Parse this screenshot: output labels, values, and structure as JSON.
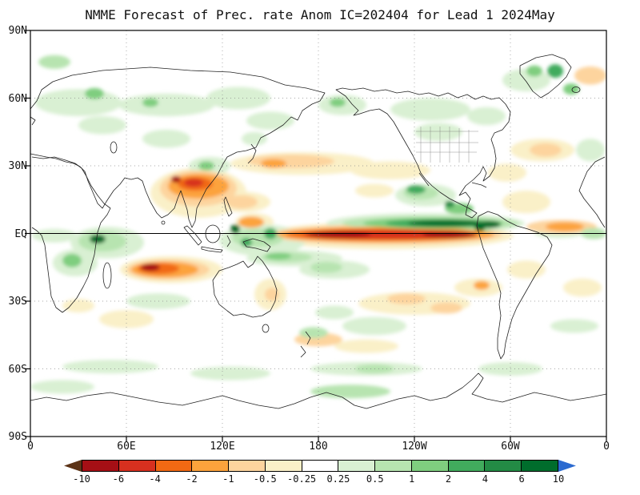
{
  "title": "NMME Forecast of Prec. rate Anom IC=202404 for Lead 1 2024May",
  "axes": {
    "y_ticks": [
      "90N",
      "60N",
      "30N",
      "EQ",
      "30S",
      "60S",
      "90S"
    ],
    "x_ticks": [
      "0",
      "60E",
      "120E",
      "180",
      "120W",
      "60W",
      "0"
    ]
  },
  "colorbar": {
    "labels": [
      "-10",
      "-6",
      "-4",
      "-2",
      "-1",
      "-0.5",
      "-0.25",
      "0.25",
      "0.5",
      "1",
      "2",
      "4",
      "6",
      "10"
    ],
    "colors": [
      "#5c3317",
      "#a50f15",
      "#d7301f",
      "#f16913",
      "#fca33c",
      "#fdd49e",
      "#faf0c8",
      "#ffffff",
      "#d9f0d3",
      "#b7e4b0",
      "#7fce7f",
      "#41ab5d",
      "#238b45",
      "#006d2c",
      "#2b6ad0"
    ]
  },
  "chart_data": {
    "type": "heatmap",
    "title": "NMME Forecast of Prec. rate Anom IC=202404 for Lead 1 2024May",
    "projection": "global lat-lon map, Pacific-centered, lon 0E-360E left to right",
    "x_ticks": [
      "0",
      "60E",
      "120E",
      "180",
      "120W",
      "60W",
      "0"
    ],
    "y_ticks": [
      "90N",
      "60N",
      "30N",
      "EQ",
      "30S",
      "60S",
      "90S"
    ],
    "colorbar_levels": [
      -10,
      -6,
      -4,
      -2,
      -1,
      -0.5,
      -0.25,
      0.25,
      0.5,
      1,
      2,
      4,
      6,
      10
    ],
    "legend_note": "negative (brown/red/orange/yellow) = dry anomaly, positive (green/blue) = wet anomaly",
    "major_anomalies": [
      "Strong dry anomaly (-2 to <-10) along the equator in the central/eastern Pacific, ~150E-65W",
      "Strong wet band (+1 to >+6, dark green core) just north of the equator ~165E-60W",
      "Dry anomaly cell over Southeast Asia / Bay of Bengal (~90-125E, 12-28N) with red core",
      "Dry band in the south Indian Ocean (~55-115E, 10-22S) with red core",
      "Wet anomaly over western equatorial Indian Ocean near East Africa",
      "Wet patches over the Maritime Continent and a wet band ~5-12S in the west Pacific",
      "Weak dry streak across subtropical North Pacific (~25-35N, 140E-160W)",
      "Dry band in tropical Atlantic just north of equator; wet strip on the equator near 0E/W",
      "Wet anomalies along Mexico / Central America Pacific coast and Colombia",
      "Scattered weak wet anomalies across northern high latitudes and the Southern Ocean"
    ],
    "features": [
      {
        "lon": 105,
        "lat": 18,
        "dlon": 30,
        "dlat": 11,
        "v": -0.35
      },
      {
        "lon": 222,
        "lat": -1,
        "dlon": 80,
        "dlat": 6,
        "v": -0.35
      },
      {
        "lon": 88,
        "lat": -16,
        "dlon": 32,
        "dlat": 6,
        "v": -0.35
      },
      {
        "lon": 170,
        "lat": 31,
        "dlon": 45,
        "dlat": 5,
        "v": -0.35
      },
      {
        "lon": 225,
        "lat": 28,
        "dlon": 25,
        "dlat": 4,
        "v": -0.35
      },
      {
        "lon": 310,
        "lat": 14,
        "dlon": 15,
        "dlat": 5,
        "v": -0.35
      },
      {
        "lon": 298,
        "lat": 27,
        "dlon": 12,
        "dlat": 4,
        "v": -0.35
      },
      {
        "lon": 320,
        "lat": 37,
        "dlon": 20,
        "dlat": 5,
        "v": -0.35
      },
      {
        "lon": 240,
        "lat": -31,
        "dlon": 35,
        "dlat": 5,
        "v": -0.35
      },
      {
        "lon": 280,
        "lat": -24,
        "dlon": 15,
        "dlat": 4,
        "v": -0.35
      },
      {
        "lon": 150,
        "lat": -27,
        "dlon": 10,
        "dlat": 7,
        "v": -0.35
      },
      {
        "lon": 345,
        "lat": -24,
        "dlon": 12,
        "dlat": 4,
        "v": -0.35
      },
      {
        "lon": 310,
        "lat": -16,
        "dlon": 12,
        "dlat": 4,
        "v": -0.35
      },
      {
        "lon": 60,
        "lat": -38,
        "dlon": 17,
        "dlat": 4,
        "v": -0.35
      },
      {
        "lon": 30,
        "lat": -32,
        "dlon": 10,
        "dlat": 3,
        "v": -0.35
      },
      {
        "lon": 210,
        "lat": -50,
        "dlon": 20,
        "dlat": 3,
        "v": -0.35
      },
      {
        "lon": 215,
        "lat": 19,
        "dlon": 12,
        "dlat": 3,
        "v": -0.35
      },
      {
        "lon": 133,
        "lat": 14,
        "dlon": 17,
        "dlat": 4.5,
        "v": -0.35
      },
      {
        "lon": 140,
        "lat": 5,
        "dlon": 12,
        "dlat": 4,
        "v": -0.35
      },
      {
        "lon": 247,
        "lat": 4.5,
        "dlon": 62,
        "dlat": 4.5,
        "v": 0.4
      },
      {
        "lon": 145,
        "lat": -3,
        "dlon": 27,
        "dlat": 7,
        "v": 0.4
      },
      {
        "lon": 165,
        "lat": -11,
        "dlon": 30,
        "dlat": 3.5,
        "v": 0.4
      },
      {
        "lon": 190,
        "lat": -16,
        "dlon": 22,
        "dlat": 4,
        "v": 0.4
      },
      {
        "lon": 48,
        "lat": -4,
        "dlon": 23,
        "dlat": 7,
        "v": 0.4
      },
      {
        "lon": 15,
        "lat": -1,
        "dlon": 14,
        "dlat": 3,
        "v": 0.4
      },
      {
        "lon": 28,
        "lat": -13,
        "dlon": 14,
        "dlat": 6,
        "v": 0.4
      },
      {
        "lon": 247,
        "lat": 17,
        "dlon": 19,
        "dlat": 5,
        "v": 0.4
      },
      {
        "lon": 30,
        "lat": 58,
        "dlon": 27,
        "dlat": 6,
        "v": 0.4
      },
      {
        "lon": 85,
        "lat": 57,
        "dlon": 30,
        "dlat": 5,
        "v": 0.4
      },
      {
        "lon": 130,
        "lat": 60,
        "dlon": 20,
        "dlat": 5,
        "v": 0.4
      },
      {
        "lon": 195,
        "lat": 57,
        "dlon": 15,
        "dlat": 4.5,
        "v": 0.4
      },
      {
        "lon": 250,
        "lat": 55,
        "dlon": 25,
        "dlat": 5,
        "v": 0.4
      },
      {
        "lon": 285,
        "lat": 52,
        "dlon": 12,
        "dlat": 4,
        "v": 0.4
      },
      {
        "lon": 310,
        "lat": 68,
        "dlon": 15,
        "dlat": 5,
        "v": 0.4
      },
      {
        "lon": 150,
        "lat": 50,
        "dlon": 15,
        "dlat": 4,
        "v": 0.4
      },
      {
        "lon": 112,
        "lat": 30,
        "dlon": 13,
        "dlat": 4,
        "v": 0.4
      },
      {
        "lon": 140,
        "lat": 42,
        "dlon": 8,
        "dlat": 3,
        "v": 0.4
      },
      {
        "lon": 85,
        "lat": 42,
        "dlon": 15,
        "dlat": 4,
        "v": 0.4
      },
      {
        "lon": 45,
        "lat": 48,
        "dlon": 15,
        "dlat": 4,
        "v": 0.4
      },
      {
        "lon": 255,
        "lat": 45,
        "dlon": 15,
        "dlat": 4,
        "v": 0.4
      },
      {
        "lon": 350,
        "lat": 37,
        "dlon": 9,
        "dlat": 5,
        "v": 0.4
      },
      {
        "lon": 50,
        "lat": -59,
        "dlon": 30,
        "dlat": 3,
        "v": 0.4
      },
      {
        "lon": 125,
        "lat": -62,
        "dlon": 25,
        "dlat": 3,
        "v": 0.4
      },
      {
        "lon": 210,
        "lat": -60,
        "dlon": 35,
        "dlat": 3,
        "v": 0.4
      },
      {
        "lon": 300,
        "lat": -60,
        "dlon": 20,
        "dlat": 3,
        "v": 0.4
      },
      {
        "lon": 215,
        "lat": -41,
        "dlon": 20,
        "dlat": 4,
        "v": 0.4
      },
      {
        "lon": 190,
        "lat": -35,
        "dlon": 12,
        "dlat": 3,
        "v": 0.4
      },
      {
        "lon": 340,
        "lat": -41,
        "dlon": 15,
        "dlat": 3,
        "v": 0.4
      },
      {
        "lon": 80,
        "lat": -30,
        "dlon": 20,
        "dlat": 3.5,
        "v": 0.4
      },
      {
        "lon": 330,
        "lat": 0,
        "dlon": 15,
        "dlat": 2,
        "v": 0.4
      },
      {
        "lon": 20,
        "lat": -68,
        "dlon": 20,
        "dlat": 3,
        "v": 0.4
      },
      {
        "lon": 105,
        "lat": 20,
        "dlon": 24,
        "dlat": 8,
        "v": -0.7
      },
      {
        "lon": 222,
        "lat": -0.5,
        "dlon": 73,
        "dlat": 4.5,
        "v": -0.7
      },
      {
        "lon": 86,
        "lat": -16,
        "dlon": 26,
        "dlat": 4.5,
        "v": -0.7
      },
      {
        "lon": 163,
        "lat": 32,
        "dlon": 27,
        "dlat": 3,
        "v": -0.7
      },
      {
        "lon": 332,
        "lat": 3,
        "dlon": 22,
        "dlat": 3,
        "v": -0.7
      },
      {
        "lon": 322,
        "lat": 37,
        "dlon": 10,
        "dlat": 3,
        "v": -0.7
      },
      {
        "lon": 235,
        "lat": -29,
        "dlon": 12,
        "dlat": 2.5,
        "v": -0.7
      },
      {
        "lon": 260,
        "lat": -33,
        "dlon": 10,
        "dlat": 2.5,
        "v": -0.7
      },
      {
        "lon": 151,
        "lat": -27,
        "dlon": 4.5,
        "dlat": 3,
        "v": -0.7
      },
      {
        "lon": 180,
        "lat": -47,
        "dlon": 15,
        "dlat": 3,
        "v": -0.7
      },
      {
        "lon": 132,
        "lat": 14,
        "dlon": 10,
        "dlat": 3,
        "v": -0.7
      },
      {
        "lon": 350,
        "lat": 70,
        "dlon": 10,
        "dlat": 4,
        "v": -0.7
      },
      {
        "lon": 250,
        "lat": 4.5,
        "dlon": 55,
        "dlat": 3.2,
        "v": 0.8
      },
      {
        "lon": 142,
        "lat": -2,
        "dlon": 16,
        "dlat": 4,
        "v": 0.8
      },
      {
        "lon": 160,
        "lat": -10.5,
        "dlon": 16,
        "dlat": 2.2,
        "v": 0.8
      },
      {
        "lon": 185,
        "lat": -15,
        "dlon": 10,
        "dlat": 2.5,
        "v": 0.8
      },
      {
        "lon": 45,
        "lat": -3.5,
        "dlon": 15,
        "dlat": 4.5,
        "v": 0.8
      },
      {
        "lon": 244,
        "lat": 18,
        "dlon": 11,
        "dlat": 3,
        "v": 0.8
      },
      {
        "lon": 280,
        "lat": 3,
        "dlon": 8,
        "dlat": 4,
        "v": 0.8
      },
      {
        "lon": 215,
        "lat": -60,
        "dlon": 12,
        "dlat": 2,
        "v": 0.8
      },
      {
        "lon": 177,
        "lat": -44,
        "dlon": 9,
        "dlat": 2.5,
        "v": 0.8
      },
      {
        "lon": 352,
        "lat": 0,
        "dlon": 8,
        "dlat": 2.5,
        "v": 0.8
      },
      {
        "lon": 15,
        "lat": 76,
        "dlon": 10,
        "dlat": 3,
        "v": 0.8
      },
      {
        "lon": 200,
        "lat": -70,
        "dlon": 25,
        "dlat": 3,
        "v": 0.8
      },
      {
        "lon": 105,
        "lat": 21,
        "dlon": 19,
        "dlat": 5.5,
        "v": -1.5
      },
      {
        "lon": 222,
        "lat": -0.5,
        "dlon": 68,
        "dlat": 3.5,
        "v": -1.5
      },
      {
        "lon": 84,
        "lat": -16,
        "dlon": 21,
        "dlat": 3.5,
        "v": -1.5
      },
      {
        "lon": 334,
        "lat": 3,
        "dlon": 12,
        "dlat": 2,
        "v": -1.5
      },
      {
        "lon": 152,
        "lat": 31,
        "dlon": 8,
        "dlat": 2,
        "v": -1.5
      },
      {
        "lon": 282,
        "lat": -23,
        "dlon": 5,
        "dlat": 2,
        "v": -1.5
      },
      {
        "lon": 138,
        "lat": 5,
        "dlon": 8,
        "dlat": 2.5,
        "v": -1.5
      },
      {
        "lon": 252,
        "lat": 4.5,
        "dlon": 44,
        "dlat": 2.4,
        "v": 1.5
      },
      {
        "lon": 40,
        "lat": 62,
        "dlon": 6,
        "dlat": 2.5,
        "v": 1.5
      },
      {
        "lon": 75,
        "lat": 58,
        "dlon": 5,
        "dlat": 2,
        "v": 1.5
      },
      {
        "lon": 192,
        "lat": 58,
        "dlon": 5,
        "dlat": 2,
        "v": 1.5
      },
      {
        "lon": 315,
        "lat": 72,
        "dlon": 5,
        "dlat": 2.5,
        "v": 1.5
      },
      {
        "lon": 338,
        "lat": 64,
        "dlon": 5,
        "dlat": 2.5,
        "v": 1.5
      },
      {
        "lon": 110,
        "lat": 30,
        "dlon": 5,
        "dlat": 2,
        "v": 1.5
      },
      {
        "lon": 268,
        "lat": 11,
        "dlon": 9,
        "dlat": 2.5,
        "v": 1.5
      },
      {
        "lon": 26,
        "lat": -12,
        "dlon": 6,
        "dlat": 3,
        "v": 1.5
      },
      {
        "lon": 155,
        "lat": -10,
        "dlon": 8,
        "dlat": 1.6,
        "v": 1.5
      },
      {
        "lon": 103,
        "lat": 22,
        "dlon": 11,
        "dlat": 3,
        "v": -3
      },
      {
        "lon": 220,
        "lat": -0.5,
        "dlon": 60,
        "dlat": 2.6,
        "v": -3
      },
      {
        "lon": 80,
        "lat": -15.5,
        "dlon": 13,
        "dlat": 2.5,
        "v": -3
      },
      {
        "lon": 255,
        "lat": 4.5,
        "dlon": 33,
        "dlat": 1.8,
        "v": 3
      },
      {
        "lon": 150,
        "lat": 0,
        "dlon": 4,
        "dlat": 2.5,
        "v": 3
      },
      {
        "lon": 135,
        "lat": -4,
        "dlon": 3.5,
        "dlat": 2,
        "v": 3
      },
      {
        "lon": 241,
        "lat": 19.5,
        "dlon": 6,
        "dlat": 2,
        "v": 3
      },
      {
        "lon": 328,
        "lat": 72,
        "dlon": 5,
        "dlat": 3,
        "v": 3
      },
      {
        "lon": 102,
        "lat": 22.5,
        "dlon": 6,
        "dlat": 1.8,
        "v": -5
      },
      {
        "lon": 222,
        "lat": -0.5,
        "dlon": 52,
        "dlat": 2,
        "v": -5
      },
      {
        "lon": 262,
        "lat": 13,
        "dlon": 3,
        "dlat": 1.5,
        "v": 5
      },
      {
        "lon": 91,
        "lat": 24,
        "dlon": 3,
        "dlat": 1.5,
        "v": -7
      },
      {
        "lon": 193,
        "lat": -0.5,
        "dlon": 20,
        "dlat": 1.6,
        "v": -7
      },
      {
        "lon": 262,
        "lat": -0.5,
        "dlon": 17,
        "dlat": 1.6,
        "v": -7
      },
      {
        "lon": 75,
        "lat": -15,
        "dlon": 6,
        "dlat": 1.6,
        "v": -7
      },
      {
        "lon": 260,
        "lat": 4.5,
        "dlon": 24,
        "dlat": 1.4,
        "v": 8
      },
      {
        "lon": 287,
        "lat": 4,
        "dlon": 7,
        "dlat": 1.6,
        "v": 8
      },
      {
        "lon": 42,
        "lat": -2.5,
        "dlon": 5,
        "dlat": 2,
        "v": 8
      },
      {
        "lon": 128,
        "lat": 2,
        "dlon": 3,
        "dlat": 2,
        "v": 8
      },
      {
        "lon": 281,
        "lat": 3,
        "dlon": 3.5,
        "dlat": 2,
        "v": 8
      }
    ]
  }
}
